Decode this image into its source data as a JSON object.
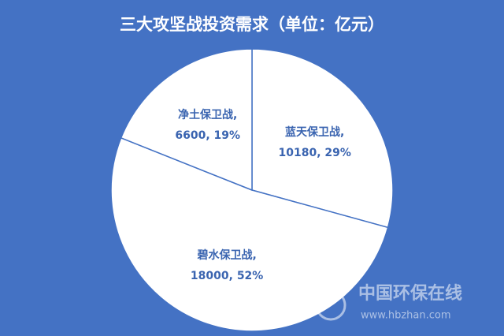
{
  "chart_data": {
    "type": "pie",
    "title": "三大攻坚战投资需求（单位：亿元）",
    "categories": [
      "蓝天保卫战,",
      "碧水保卫战,",
      "净土保卫战,"
    ],
    "values": [
      10180,
      18000,
      6600
    ],
    "value_labels": [
      "10180, 29%",
      "18000, 52%",
      "6600, 19%"
    ],
    "color": "#ffffff"
  },
  "watermark": {
    "name": "中国环保在线",
    "url": "www.hbzhan.com"
  }
}
